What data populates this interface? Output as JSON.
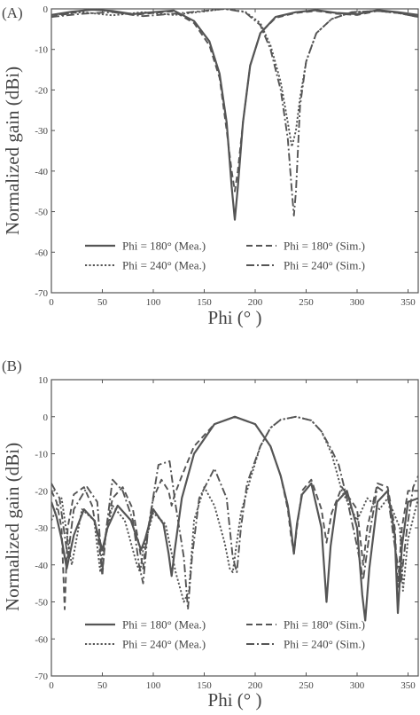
{
  "chart_data": [
    {
      "panel_label": "(A)",
      "type": "line",
      "xlabel": "Phi (° )",
      "ylabel": "Normalized gain (dBi)",
      "xlim": [
        0,
        360
      ],
      "ylim": [
        -70,
        0
      ],
      "xticks": [
        0,
        50,
        100,
        150,
        200,
        250,
        300,
        350
      ],
      "yticks": [
        0,
        -10,
        -20,
        -30,
        -40,
        -50,
        -60,
        -70
      ],
      "legend_position": "lower-center",
      "series": [
        {
          "name": "Phi = 180° (Mea.)",
          "style": "solid",
          "x": [
            0,
            20,
            40,
            60,
            80,
            100,
            120,
            140,
            155,
            165,
            172,
            177,
            180,
            183,
            188,
            195,
            205,
            220,
            240,
            260,
            280,
            300,
            320,
            340,
            360
          ],
          "values": [
            -1.5,
            -0.7,
            -0.2,
            -0.5,
            -1.3,
            -0.8,
            -0.4,
            -3,
            -8,
            -16,
            -28,
            -44,
            -52,
            -44,
            -28,
            -14,
            -6,
            -2,
            -0.8,
            -0.3,
            -1,
            -1.3,
            -0.3,
            -0.8,
            -1.5
          ]
        },
        {
          "name": "Phi = 180° (Sim.)",
          "style": "dashed",
          "x": [
            0,
            20,
            40,
            60,
            80,
            100,
            120,
            140,
            155,
            165,
            172,
            177,
            180,
            183,
            188,
            195,
            205,
            220,
            240,
            260,
            280,
            300,
            320,
            340,
            360
          ],
          "values": [
            -2,
            -1,
            0,
            -0.7,
            -1.5,
            -1,
            -0.6,
            -3.5,
            -9,
            -17,
            -30,
            -40,
            -45,
            -40,
            -28,
            -14,
            -6,
            -2.2,
            -1,
            -0.5,
            -1.2,
            -1.5,
            -0.5,
            -1,
            -2
          ]
        },
        {
          "name": "Phi = 240° (Mea.)",
          "style": "dotted",
          "x": [
            0,
            30,
            60,
            90,
            120,
            150,
            170,
            190,
            205,
            215,
            225,
            232,
            236,
            240,
            244,
            250,
            260,
            275,
            295,
            320,
            340,
            360
          ],
          "values": [
            -1.5,
            -0.8,
            -1.6,
            -0.8,
            -1.5,
            -0.6,
            0,
            -0.7,
            -3.5,
            -9,
            -18,
            -28,
            -34,
            -30,
            -22,
            -13,
            -6,
            -2.5,
            -0.8,
            -0.5,
            -1,
            -1.5
          ]
        },
        {
          "name": "Phi = 240° (Sim.)",
          "style": "dashdot",
          "x": [
            0,
            30,
            60,
            90,
            120,
            150,
            170,
            190,
            205,
            215,
            225,
            232,
            236,
            238,
            240,
            244,
            250,
            260,
            275,
            295,
            320,
            340,
            360
          ],
          "values": [
            -2,
            -1.2,
            -0.8,
            -1.8,
            -1.2,
            -0.5,
            0,
            -0.8,
            -4,
            -10,
            -20,
            -32,
            -45,
            -51,
            -45,
            -24,
            -13,
            -6,
            -2.5,
            -0.8,
            -0.5,
            -1,
            -2
          ]
        }
      ]
    },
    {
      "panel_label": "(B)",
      "type": "line",
      "xlabel": "Phi (° )",
      "ylabel": "Normalized gain (dBi)",
      "xlim": [
        0,
        360
      ],
      "ylim": [
        -70,
        10
      ],
      "xticks": [
        0,
        50,
        100,
        150,
        200,
        250,
        300,
        350
      ],
      "yticks": [
        10,
        0,
        -10,
        -20,
        -30,
        -40,
        -50,
        -60,
        -70
      ],
      "legend_position": "lower-center",
      "series": [
        {
          "name": "Phi = 180° (Mea.)",
          "style": "solid",
          "x": [
            0,
            5,
            10,
            15,
            22,
            32,
            42,
            50,
            55,
            65,
            78,
            88,
            92,
            100,
            110,
            115,
            118,
            121,
            128,
            140,
            160,
            180,
            200,
            215,
            225,
            232,
            235,
            238,
            241,
            246,
            255,
            265,
            270,
            274,
            280,
            290,
            300,
            305,
            308,
            312,
            320,
            330,
            337,
            340,
            344,
            350,
            360
          ],
          "values": [
            -23,
            -27,
            -33,
            -41,
            -32,
            -25,
            -28,
            -36,
            -30,
            -24,
            -28,
            -36,
            -33,
            -25,
            -29,
            -37,
            -43,
            -36,
            -22,
            -10,
            -2,
            0,
            -2,
            -8,
            -16,
            -24,
            -30,
            -37,
            -29,
            -21,
            -18,
            -30,
            -50,
            -35,
            -23,
            -20,
            -30,
            -48,
            -55,
            -41,
            -23,
            -20,
            -32,
            -53,
            -35,
            -23,
            -22
          ]
        },
        {
          "name": "Phi = 180° (Sim.)",
          "style": "dashed",
          "x": [
            0,
            5,
            10,
            13,
            16,
            22,
            32,
            40,
            47,
            50,
            53,
            60,
            70,
            80,
            88,
            90,
            92,
            100,
            108,
            115,
            118,
            121,
            128,
            140,
            160,
            180,
            200,
            215,
            225,
            232,
            235,
            238,
            241,
            246,
            255,
            265,
            270,
            275,
            285,
            300,
            306,
            310,
            320,
            330,
            337,
            340,
            344,
            350,
            360
          ],
          "values": [
            -20,
            -23,
            -30,
            -52,
            -30,
            -21,
            -19,
            -24,
            -35,
            -43,
            -32,
            -22,
            -19,
            -25,
            -38,
            -41,
            -36,
            -22,
            -17,
            -20,
            -24,
            -21,
            -16,
            -8,
            -2,
            0,
            -2,
            -8,
            -16,
            -25,
            -32,
            -37,
            -30,
            -20,
            -17,
            -25,
            -34,
            -26,
            -19,
            -25,
            -40,
            -30,
            -18,
            -19,
            -30,
            -46,
            -30,
            -20,
            -20
          ]
        },
        {
          "name": "Phi = 240° (Mea.)",
          "style": "dotted",
          "x": [
            0,
            10,
            17,
            20,
            30,
            42,
            48,
            52,
            60,
            72,
            84,
            87,
            90,
            100,
            112,
            122,
            130,
            135,
            140,
            150,
            160,
            170,
            175,
            178,
            181,
            186,
            195,
            205,
            215,
            225,
            240,
            255,
            265,
            275,
            285,
            300,
            310,
            322,
            330,
            342,
            345,
            350,
            360
          ],
          "values": [
            -28,
            -22,
            -35,
            -40,
            -25,
            -28,
            -42,
            -34,
            -24,
            -28,
            -40,
            -42,
            -36,
            -26,
            -29,
            -42,
            -50,
            -47,
            -28,
            -19,
            -24,
            -34,
            -41,
            -42,
            -36,
            -26,
            -17,
            -8,
            -3,
            -0.8,
            0,
            -1,
            -4,
            -10,
            -20,
            -28,
            -22,
            -25,
            -22,
            -30,
            -47,
            -33,
            -22
          ]
        },
        {
          "name": "Phi = 240° (Sim.)",
          "style": "dashdot",
          "x": [
            0,
            8,
            16,
            22,
            35,
            45,
            50,
            54,
            60,
            70,
            80,
            86,
            90,
            95,
            105,
            116,
            122,
            130,
            134,
            138,
            145,
            160,
            172,
            178,
            182,
            186,
            192,
            205,
            215,
            225,
            240,
            255,
            265,
            275,
            282,
            290,
            300,
            306,
            312,
            320,
            330,
            337,
            343,
            349,
            355,
            360
          ],
          "values": [
            -18,
            -22,
            -38,
            -25,
            -19,
            -23,
            -42,
            -30,
            -17,
            -20,
            -28,
            -40,
            -45,
            -30,
            -13,
            -12,
            -24,
            -38,
            -52,
            -38,
            -22,
            -14,
            -22,
            -38,
            -42,
            -30,
            -18,
            -8,
            -3,
            -0.8,
            0,
            -1,
            -4,
            -9,
            -13,
            -22,
            -35,
            -44,
            -32,
            -19,
            -21,
            -35,
            -45,
            -30,
            -19,
            -16
          ]
        }
      ]
    }
  ]
}
